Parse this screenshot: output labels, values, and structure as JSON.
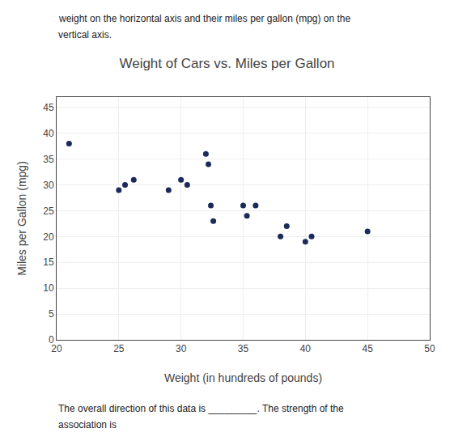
{
  "chart_data": {
    "type": "scatter",
    "title": "Weight of Cars vs. Miles per Gallon",
    "xlabel": "Weight (in hundreds of pounds)",
    "ylabel": "Miles per Gallon (mpg)",
    "annotations": [
      "weight on the horizontal axis and their miles per gallon (mpg) on the",
      "vertical axis.",
      "The overall direction of this data is _________. The strength of the",
      "association is"
    ],
    "x": [
      21,
      25,
      25.5,
      26.2,
      29,
      30,
      30.5,
      32,
      32.2,
      32.4,
      32.6,
      35,
      35.3,
      36,
      38,
      38.5,
      40,
      40.5,
      45
    ],
    "values": [
      38,
      29,
      30,
      31,
      29,
      31,
      30,
      36,
      34,
      26,
      23,
      26,
      24,
      26,
      20,
      22,
      19,
      20,
      21
    ],
    "color": "#1a2a5a",
    "xlim": [
      20,
      50
    ],
    "ylim": [
      0,
      47
    ],
    "xticks": [
      20,
      25,
      30,
      35,
      40,
      45,
      50
    ],
    "yticks": [
      0,
      5,
      10,
      15,
      20,
      25,
      30,
      35,
      40,
      45
    ],
    "grid": true
  }
}
